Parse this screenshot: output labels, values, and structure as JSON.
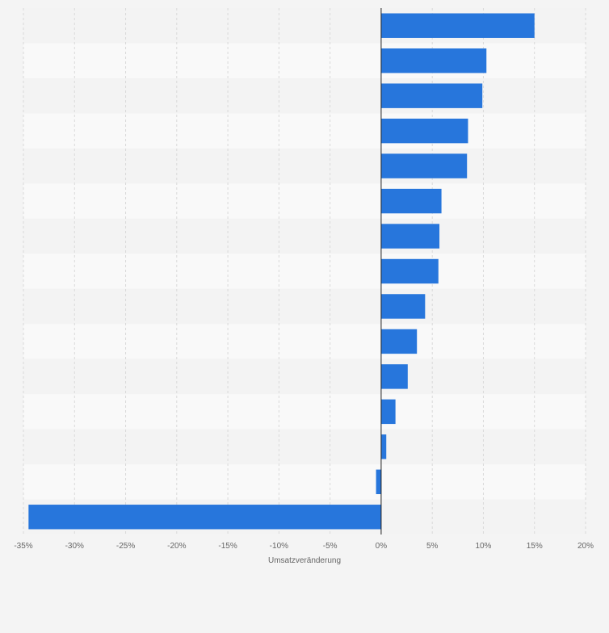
{
  "chart_data": {
    "type": "bar",
    "orientation": "horizontal",
    "categories": [
      "",
      "",
      "",
      "",
      "",
      "",
      "",
      "",
      "",
      "",
      "",
      "",
      "",
      "",
      ""
    ],
    "values": [
      15.0,
      10.3,
      9.9,
      8.5,
      8.4,
      5.9,
      5.7,
      5.6,
      4.3,
      3.5,
      2.6,
      1.4,
      0.5,
      -0.5,
      -34.5
    ],
    "xlabel": "Umsatzveränderung",
    "ylabel": "",
    "xlim": [
      -35,
      20
    ],
    "x_ticks": [
      -35,
      -30,
      -25,
      -20,
      -15,
      -10,
      -5,
      0,
      5,
      10,
      15,
      20
    ],
    "x_tick_labels": [
      "-35%",
      "-30%",
      "-25%",
      "-20%",
      "-15%",
      "-10%",
      "-5%",
      "0%",
      "5%",
      "10%",
      "15%",
      "20%"
    ],
    "grid": true,
    "legend": "none",
    "colors": {
      "bar": "#2776dc",
      "background": "#f4f4f4",
      "band_light": "#f9f9f9",
      "band_dark": "#f3f3f3",
      "grid": "#d9d9d9",
      "zero_line": "#222222",
      "tick_text": "#666666"
    }
  }
}
